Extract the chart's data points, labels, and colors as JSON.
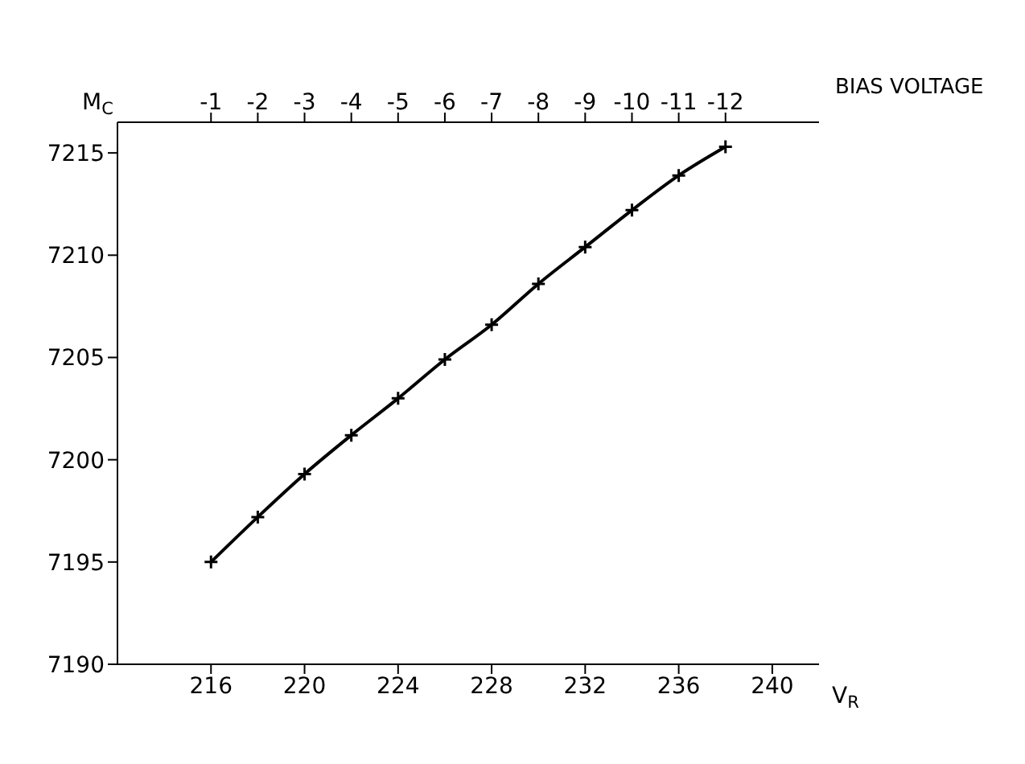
{
  "chart_data": {
    "type": "line",
    "xlabel": "V$_{R}$",
    "ylabel": "M$_{C}$",
    "x2label": "BIAS VOLTAGE",
    "x": [
      216,
      218,
      220,
      222,
      224,
      226,
      228,
      230,
      232,
      234,
      236,
      238
    ],
    "series": [
      {
        "color": "#000000",
        "values": [
          7195.0,
          7197.2,
          7199.3,
          7201.2,
          7203.0,
          7204.9,
          7206.6,
          7208.6,
          7210.4,
          7212.2,
          7213.9,
          7215.3
        ]
      }
    ],
    "xlim": [
      212,
      242
    ],
    "xticks": [
      216,
      220,
      224,
      228,
      232,
      236,
      240
    ],
    "x2lim": [
      1,
      -14
    ],
    "x2ticks": [
      -1,
      -2,
      -3,
      -4,
      -5,
      -6,
      -7,
      -8,
      -9,
      -10,
      -11,
      -12
    ],
    "ylim": [
      7190,
      7216.5
    ],
    "yticks": [
      7190,
      7195,
      7200,
      7205,
      7210,
      7215
    ],
    "grid": false,
    "legend": false,
    "marker": "cross",
    "line_style": "solid"
  }
}
